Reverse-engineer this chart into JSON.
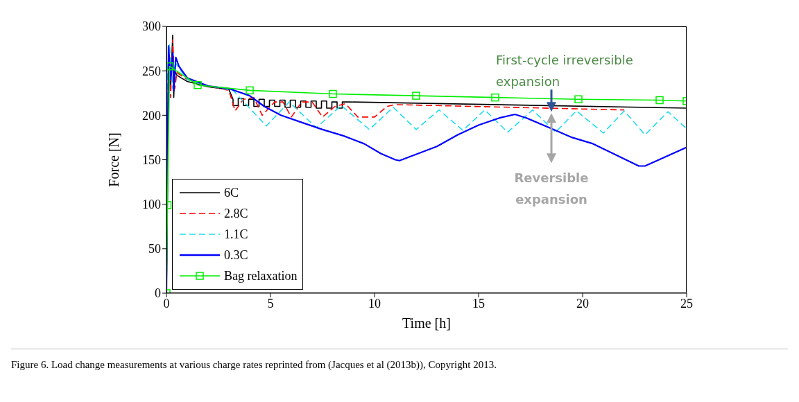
{
  "chart_data": {
    "type": "line",
    "xlabel": "Time [h]",
    "ylabel": "Force [N]",
    "xlim": [
      0,
      25
    ],
    "xticks": [
      0,
      5,
      10,
      15,
      20,
      25
    ],
    "ylim": [
      0,
      300
    ],
    "yticks": [
      0,
      50,
      100,
      150,
      200,
      250,
      300
    ],
    "grid": false,
    "legend": "bottom left",
    "marker": "none",
    "line_style": "solid",
    "series": [
      {
        "name": "6C",
        "color": "#000000",
        "x": [
          0,
          0.1,
          0.2,
          0.3,
          0.35,
          0.4,
          0.5,
          1,
          2,
          3,
          3.2,
          3.2,
          3.45,
          3.45,
          3.7,
          3.7,
          3.95,
          3.95,
          4.2,
          4.2,
          4.45,
          4.45,
          4.7,
          4.7,
          4.95,
          4.95,
          5.2,
          5.2,
          5.45,
          5.45,
          5.7,
          5.7,
          5.95,
          5.95,
          6.2,
          6.2,
          6.45,
          6.45,
          6.7,
          6.7,
          6.95,
          6.95,
          7.2,
          7.2,
          7.45,
          7.45,
          7.7,
          7.7,
          7.95,
          7.95,
          8.2,
          8.2,
          8.45,
          8.45,
          8.7,
          8.8,
          25
        ],
        "values": [
          0,
          250,
          230,
          290,
          220,
          250,
          245,
          238,
          232,
          229,
          218,
          211,
          211,
          219,
          219,
          211,
          211,
          218,
          218,
          210,
          210,
          218,
          218,
          210,
          210,
          217,
          217,
          210,
          210,
          217,
          217,
          209,
          209,
          217,
          217,
          209,
          209,
          216,
          216,
          209,
          209,
          216,
          216,
          208,
          208,
          216,
          216,
          208,
          208,
          215,
          215,
          208,
          208,
          215,
          215,
          215,
          208
        ]
      },
      {
        "name": "2.8C",
        "color": "#ff0000",
        "line_style": "dashed",
        "x": [
          0,
          0.1,
          0.2,
          0.3,
          0.4,
          0.5,
          1,
          2,
          3,
          3.3,
          3.7,
          4.2,
          4.6,
          5.2,
          5.6,
          6,
          6.5,
          7,
          7.5,
          8.1,
          8.6,
          9.2,
          10,
          10.6,
          11,
          22
        ],
        "values": [
          0,
          270,
          220,
          285,
          230,
          248,
          240,
          233,
          228,
          205,
          218,
          220,
          200,
          215,
          215,
          198,
          215,
          215,
          198,
          210,
          213,
          198,
          198,
          210,
          212,
          206
        ]
      },
      {
        "name": "1.1C",
        "color": "#22ddee",
        "line_style": "dashed",
        "x": [
          0,
          0.05,
          0.15,
          0.3,
          0.4,
          1,
          2,
          3.2,
          4.8,
          5.9,
          7.2,
          8.4,
          9.75,
          10.9,
          12,
          13.1,
          14.25,
          15.3,
          16.4,
          17.6,
          18.7,
          19.7,
          21,
          22,
          23,
          24.1,
          25
        ],
        "values": [
          0,
          250,
          280,
          230,
          260,
          240,
          233,
          228,
          188,
          215,
          186,
          211,
          184,
          209,
          184,
          206,
          183,
          206,
          181,
          206,
          181,
          205,
          180,
          205,
          178,
          204,
          185
        ]
      },
      {
        "name": "0.3C",
        "color": "#0000ff",
        "x": [
          0,
          0.1,
          0.2,
          0.3,
          0.35,
          0.45,
          0.6,
          1,
          2,
          3,
          4,
          4.7,
          5.5,
          6.5,
          7.5,
          8.5,
          9.5,
          10.3,
          11,
          11.2,
          13,
          14,
          15,
          16,
          16.75,
          17.3,
          18.5,
          19.5,
          20.5,
          22.7,
          23,
          25
        ],
        "values": [
          0,
          278,
          240,
          270,
          228,
          265,
          255,
          242,
          233,
          230,
          222,
          210,
          200,
          192,
          184,
          177,
          168,
          157,
          150,
          149,
          165,
          178,
          189,
          197,
          201,
          197,
          185,
          175,
          168,
          143,
          143,
          164
        ]
      },
      {
        "name": "Bag relaxation",
        "color": "#00ee00",
        "marker": "square",
        "x": [
          0,
          0.05,
          0.15,
          1.5,
          4,
          8,
          12,
          15.8,
          19.8,
          23.7,
          25
        ],
        "values": [
          0,
          99,
          255,
          234,
          228,
          224,
          222,
          220,
          218,
          217,
          216
        ]
      }
    ],
    "annotations": [
      {
        "text": "First-cycle irreversible expansion",
        "x": 18.5,
        "y": 218
      },
      "Reversible expansion",
      "Figure 6.  Load change measurements at various charge rates reprinted from (Jacques et al (2013b)), Copyright 2013."
    ]
  }
}
